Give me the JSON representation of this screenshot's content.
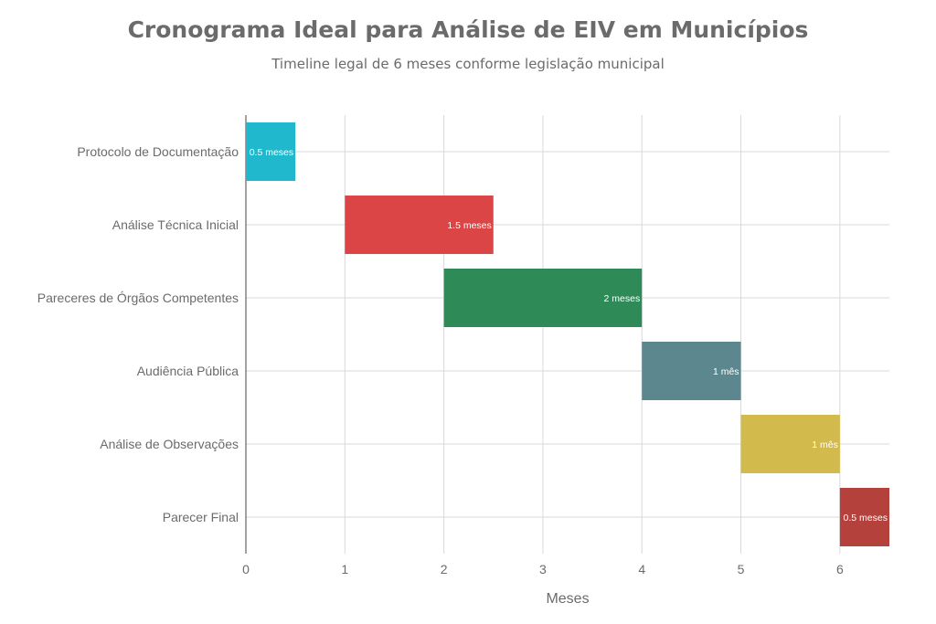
{
  "chart_data": {
    "type": "bar",
    "orientation": "horizontal-gantt",
    "title": "Cronograma Ideal para Análise de EIV em Municípios",
    "subtitle": "Timeline legal de 6 meses conforme legislação municipal",
    "xlabel": "Meses",
    "ylabel": "",
    "xlim": [
      0,
      6.5
    ],
    "xticks": [
      0,
      1,
      2,
      3,
      4,
      5,
      6
    ],
    "grid": true,
    "legend": "none",
    "tasks": [
      {
        "name": "Protocolo de Documentação",
        "start": 0,
        "duration": 0.5,
        "label": "0.5 meses",
        "color": "#1fb8cd"
      },
      {
        "name": "Análise Técnica Inicial",
        "start": 1,
        "duration": 1.5,
        "label": "1.5 meses",
        "color": "#db4545"
      },
      {
        "name": "Pareceres de Órgãos Competentes",
        "start": 2,
        "duration": 2,
        "label": "2 meses",
        "color": "#2e8b57"
      },
      {
        "name": "Audiência Pública",
        "start": 4,
        "duration": 1,
        "label": "1 mês",
        "color": "#5d878f"
      },
      {
        "name": "Análise de Observações",
        "start": 5,
        "duration": 1,
        "label": "1 mês",
        "color": "#d2ba4c"
      },
      {
        "name": "Parecer Final",
        "start": 6,
        "duration": 0.5,
        "label": "0.5 meses",
        "color": "#b4413c"
      }
    ]
  }
}
